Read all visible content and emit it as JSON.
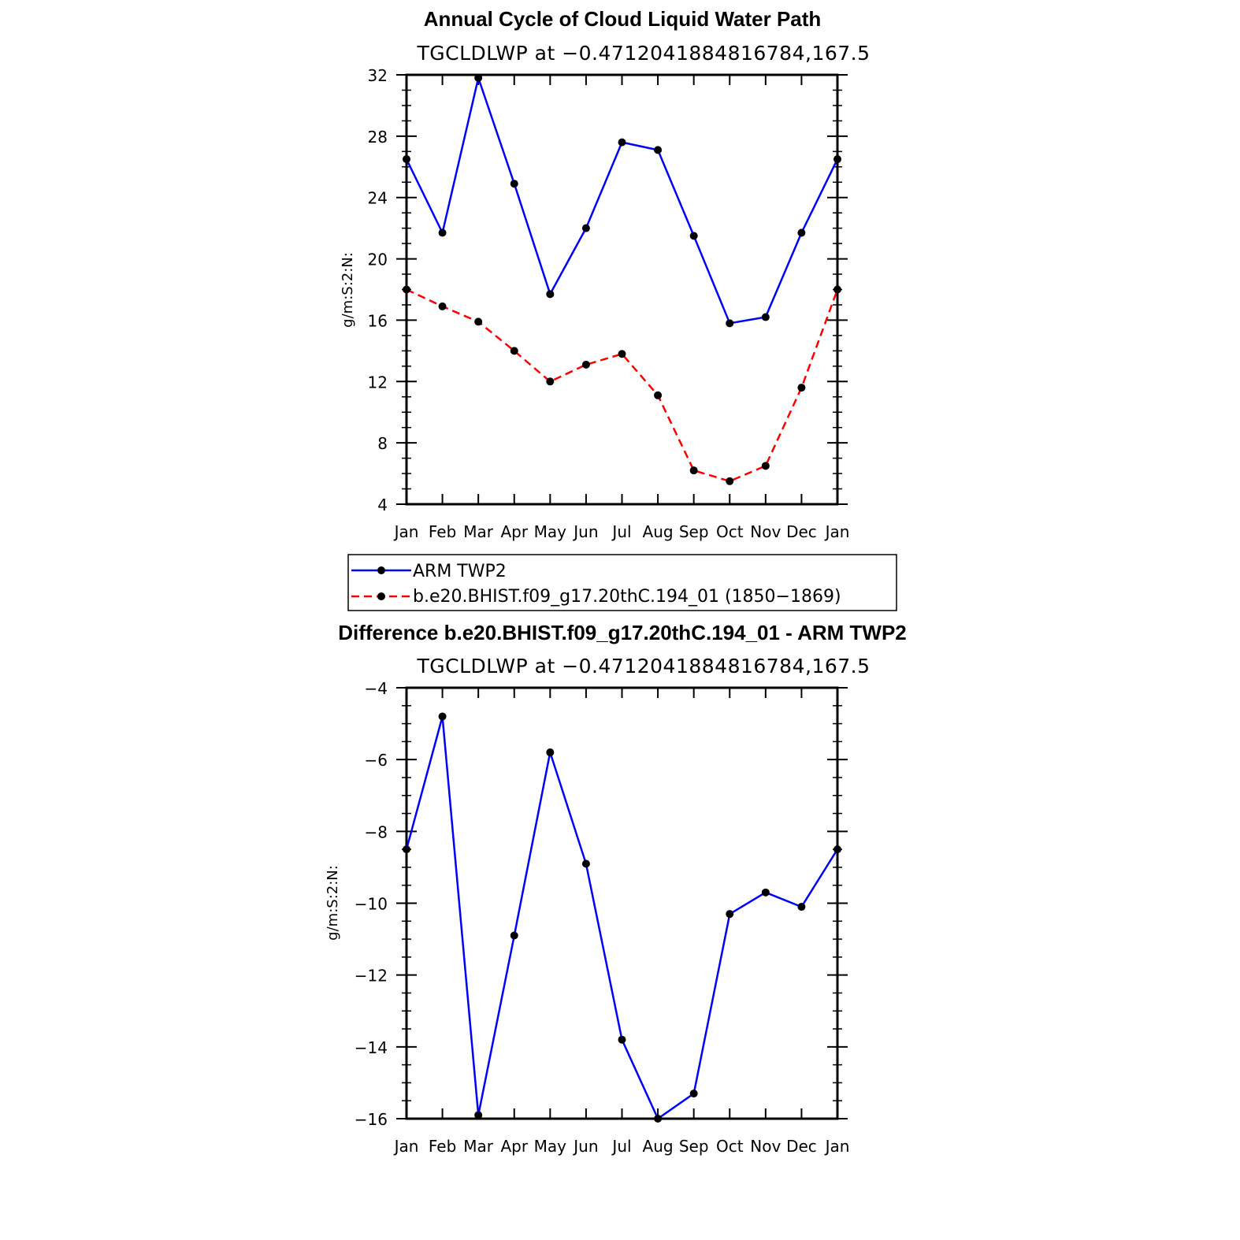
{
  "chart_data": [
    {
      "type": "line",
      "title": "Annual Cycle of Cloud Liquid Water Path",
      "subtitle": "TGCLDLWP at −0.4712041884816784,167.5",
      "xlabel": "",
      "ylabel": "g/m:S:2:N:",
      "categories": [
        "Jan",
        "Feb",
        "Mar",
        "Apr",
        "May",
        "Jun",
        "Jul",
        "Aug",
        "Sep",
        "Oct",
        "Nov",
        "Dec",
        "Jan"
      ],
      "ylim": [
        4,
        32
      ],
      "yticks": [
        "4",
        "8",
        "12",
        "16",
        "20",
        "24",
        "28",
        "32"
      ],
      "series": [
        {
          "name": "ARM TWP2",
          "color": "#0000ff",
          "dash": "solid",
          "values": [
            26.5,
            21.7,
            31.8,
            24.9,
            17.7,
            22.0,
            27.6,
            27.1,
            21.5,
            15.8,
            16.2,
            21.7,
            26.5
          ]
        },
        {
          "name": "b.e20.BHIST.f09_g17.20thC.194_01 (1850−1869)",
          "color": "#ff0000",
          "dash": "dashed",
          "values": [
            18.0,
            16.9,
            15.9,
            14.0,
            12.0,
            13.1,
            13.8,
            11.1,
            6.2,
            5.5,
            6.5,
            11.6,
            18.0
          ]
        }
      ],
      "legend_position": "below"
    },
    {
      "type": "line",
      "title": "Difference b.e20.BHIST.f09_g17.20thC.194_01 - ARM TWP2",
      "subtitle": "TGCLDLWP at −0.4712041884816784,167.5",
      "xlabel": "",
      "ylabel": "g/m:S:2:N:",
      "categories": [
        "Jan",
        "Feb",
        "Mar",
        "Apr",
        "May",
        "Jun",
        "Jul",
        "Aug",
        "Sep",
        "Oct",
        "Nov",
        "Dec",
        "Jan"
      ],
      "ylim": [
        -16,
        -4
      ],
      "yticks": [
        "−16",
        "−14",
        "−12",
        "−10",
        "−8",
        "−6",
        "−4"
      ],
      "series": [
        {
          "color": "#0000ff",
          "dash": "solid",
          "values": [
            -8.5,
            -4.8,
            -15.9,
            -10.9,
            -5.8,
            -8.9,
            -13.8,
            -16.0,
            -15.3,
            -10.3,
            -9.7,
            -10.1,
            -8.5
          ]
        }
      ]
    }
  ]
}
